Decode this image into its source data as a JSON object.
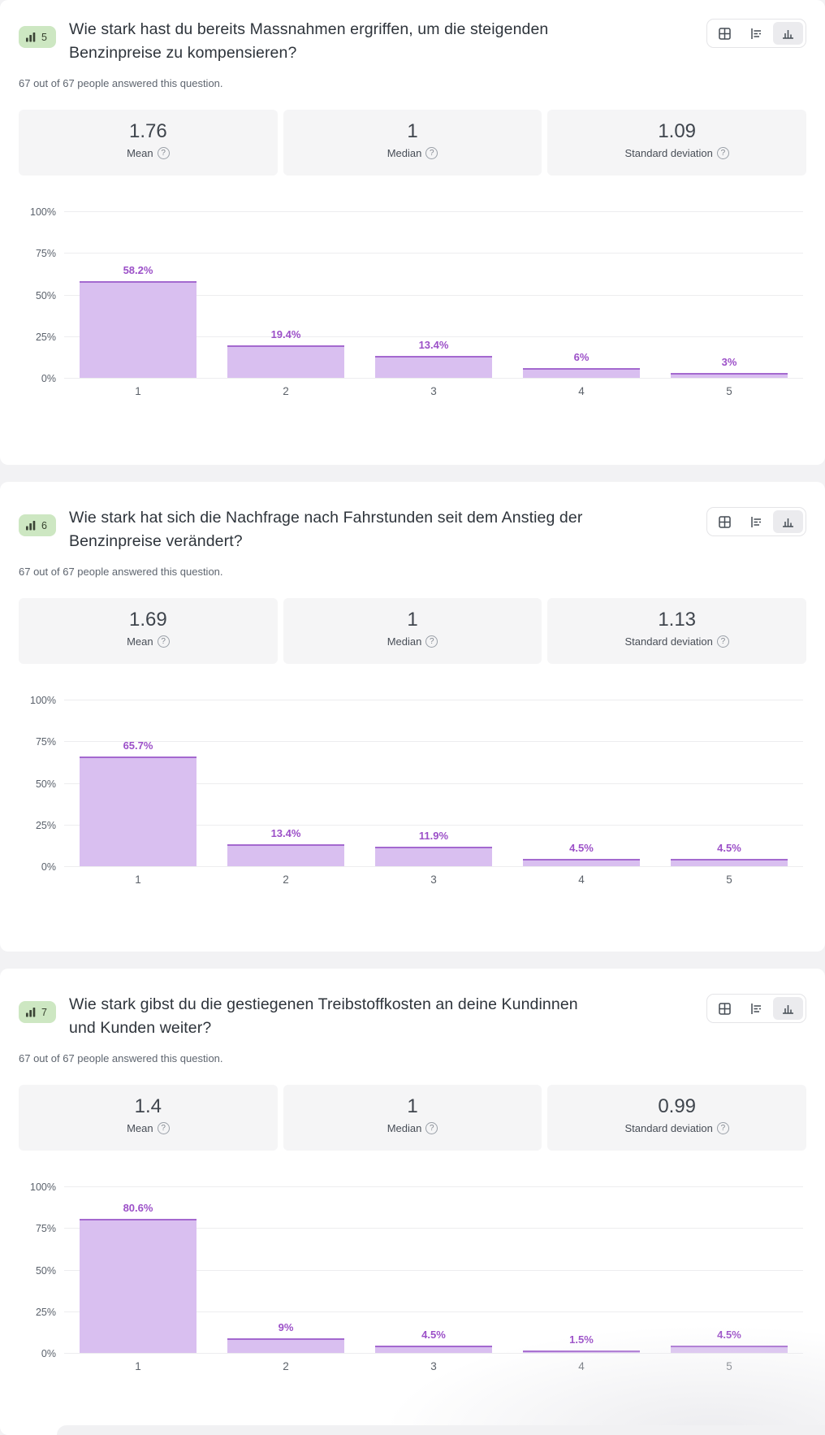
{
  "labels": {
    "mean": "Mean",
    "median": "Median",
    "std": "Standard deviation",
    "help_glyph": "?"
  },
  "colors": {
    "bar_fill": "#d9bff0",
    "bar_border": "#a469cf",
    "value_label": "#9c50c8",
    "badge_bg": "#cde7c2",
    "page_bg": "#f2f2f4",
    "card_bg": "#ffffff",
    "grid": "#ededef",
    "title_text": "#2e343b",
    "muted_text": "#5e656f"
  },
  "view_toggle": {
    "options": [
      "table-view",
      "horizontal-bar-view",
      "vertical-bar-view"
    ],
    "selected": "vertical-bar-view"
  },
  "questions": [
    {
      "number": "5",
      "title": "Wie stark hast du bereits Massnahmen ergriffen, um die steigenden Benzinpreise zu kompensieren?",
      "answered": "67 out of 67 people answered this question.",
      "stats": {
        "mean": "1.76",
        "median": "1",
        "std": "1.09"
      }
    },
    {
      "number": "6",
      "title": "Wie stark hat sich die Nachfrage nach Fahrstunden seit dem Anstieg der Benzinpreise verändert?",
      "answered": "67 out of 67 people answered this question.",
      "stats": {
        "mean": "1.69",
        "median": "1",
        "std": "1.13"
      }
    },
    {
      "number": "7",
      "title": "Wie stark gibst du die gestiegenen Treibstoffkosten an deine Kundinnen und Kunden weiter?",
      "answered": "67 out of 67 people answered this question.",
      "stats": {
        "mean": "1.4",
        "median": "1",
        "std": "0.99"
      }
    }
  ],
  "chart_data": [
    {
      "type": "bar",
      "title": "Wie stark hast du bereits Massnahmen ergriffen, um die steigenden Benzinpreise zu kompensieren?",
      "categories": [
        "1",
        "2",
        "3",
        "4",
        "5"
      ],
      "values": [
        58.2,
        19.4,
        13.4,
        6,
        3
      ],
      "value_labels": [
        "58.2%",
        "19.4%",
        "13.4%",
        "6%",
        "3%"
      ],
      "xlabel": "",
      "ylabel": "",
      "ylim": [
        0,
        100
      ],
      "ytick_labels": [
        "100%",
        "75%",
        "50%",
        "25%",
        "0%"
      ],
      "grid": true,
      "legend": false
    },
    {
      "type": "bar",
      "title": "Wie stark hat sich die Nachfrage nach Fahrstunden seit dem Anstieg der Benzinpreise verändert?",
      "categories": [
        "1",
        "2",
        "3",
        "4",
        "5"
      ],
      "values": [
        65.7,
        13.4,
        11.9,
        4.5,
        4.5
      ],
      "value_labels": [
        "65.7%",
        "13.4%",
        "11.9%",
        "4.5%",
        "4.5%"
      ],
      "xlabel": "",
      "ylabel": "",
      "ylim": [
        0,
        100
      ],
      "ytick_labels": [
        "100%",
        "75%",
        "50%",
        "25%",
        "0%"
      ],
      "grid": true,
      "legend": false
    },
    {
      "type": "bar",
      "title": "Wie stark gibst du die gestiegenen Treibstoffkosten an deine Kundinnen und Kunden weiter?",
      "categories": [
        "1",
        "2",
        "3",
        "4",
        "5"
      ],
      "values": [
        80.6,
        9,
        4.5,
        1.5,
        4.5
      ],
      "value_labels": [
        "80.6%",
        "9%",
        "4.5%",
        "1.5%",
        "4.5%"
      ],
      "xlabel": "",
      "ylabel": "",
      "ylim": [
        0,
        100
      ],
      "ytick_labels": [
        "100%",
        "75%",
        "50%",
        "25%",
        "0%"
      ],
      "grid": true,
      "legend": false
    }
  ]
}
